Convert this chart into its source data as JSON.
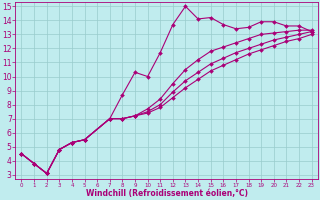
{
  "xlabel": "Windchill (Refroidissement éolien,°C)",
  "bg_color": "#c0ecee",
  "line_color": "#aa0077",
  "grid_color": "#99cccc",
  "xlim": [
    -0.5,
    23.5
  ],
  "ylim": [
    2.7,
    15.3
  ],
  "xticks": [
    0,
    1,
    2,
    3,
    4,
    5,
    6,
    7,
    8,
    9,
    10,
    11,
    12,
    13,
    14,
    15,
    16,
    17,
    18,
    19,
    20,
    21,
    22,
    23
  ],
  "yticks": [
    3,
    4,
    5,
    6,
    7,
    8,
    9,
    10,
    11,
    12,
    13,
    14,
    15
  ],
  "lines": [
    {
      "x": [
        0,
        1,
        2,
        3,
        4,
        5,
        7,
        8,
        9,
        10,
        11,
        12,
        13,
        14,
        15,
        16,
        17,
        18,
        19,
        20,
        21,
        22,
        23
      ],
      "y": [
        4.5,
        3.8,
        3.1,
        4.8,
        5.3,
        5.5,
        7.0,
        8.7,
        10.3,
        10.0,
        11.7,
        13.7,
        15.0,
        14.1,
        14.2,
        13.7,
        13.4,
        13.5,
        13.9,
        13.9,
        13.6,
        13.6,
        13.2
      ]
    },
    {
      "x": [
        0,
        1,
        2,
        3,
        4,
        5,
        7,
        8,
        9,
        10,
        11,
        12,
        13,
        14,
        15,
        16,
        17,
        18,
        19,
        20,
        21,
        22,
        23
      ],
      "y": [
        4.5,
        3.8,
        3.1,
        4.8,
        5.3,
        5.5,
        7.0,
        7.0,
        7.2,
        7.7,
        8.4,
        9.5,
        10.5,
        11.2,
        11.8,
        12.1,
        12.4,
        12.7,
        13.0,
        13.1,
        13.2,
        13.3,
        13.3
      ]
    },
    {
      "x": [
        0,
        1,
        2,
        3,
        4,
        5,
        7,
        8,
        9,
        10,
        11,
        12,
        13,
        14,
        15,
        16,
        17,
        18,
        19,
        20,
        21,
        22,
        23
      ],
      "y": [
        4.5,
        3.8,
        3.1,
        4.8,
        5.3,
        5.5,
        7.0,
        7.0,
        7.2,
        7.5,
        8.0,
        8.9,
        9.7,
        10.3,
        10.9,
        11.3,
        11.7,
        12.0,
        12.3,
        12.6,
        12.8,
        13.0,
        13.2
      ]
    },
    {
      "x": [
        0,
        1,
        2,
        3,
        4,
        5,
        7,
        8,
        9,
        10,
        11,
        12,
        13,
        14,
        15,
        16,
        17,
        18,
        19,
        20,
        21,
        22,
        23
      ],
      "y": [
        4.5,
        3.8,
        3.1,
        4.8,
        5.3,
        5.5,
        7.0,
        7.0,
        7.2,
        7.4,
        7.8,
        8.5,
        9.2,
        9.8,
        10.4,
        10.8,
        11.2,
        11.6,
        11.9,
        12.2,
        12.5,
        12.7,
        13.0
      ]
    }
  ],
  "marker": "D",
  "markersize": 2.0,
  "linewidth": 0.8,
  "tick_fontsize_x": 4.0,
  "tick_fontsize_y": 5.5,
  "xlabel_fontsize": 5.5
}
